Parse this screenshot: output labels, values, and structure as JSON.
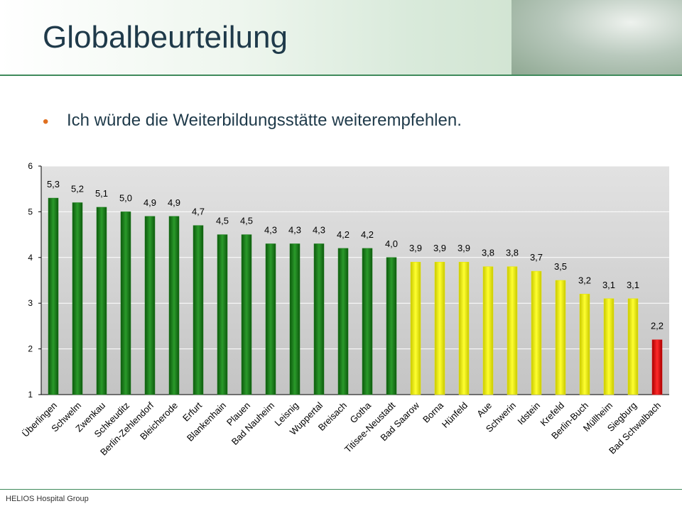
{
  "slide": {
    "title": "Globalbeurteilung",
    "bullet": "Ich würde die Weiterbildungsstätte weiterempfehlen.",
    "footer": "HELIOS Hospital Group"
  },
  "colors": {
    "green": "#1a7a1a",
    "yellow": "#e6e600",
    "red": "#dd1111",
    "bullet": "#e07020",
    "title": "#1f3a4a"
  },
  "chart_data": {
    "type": "bar",
    "title": "",
    "xlabel": "",
    "ylabel": "",
    "ylim": [
      1,
      6
    ],
    "yticks": [
      "1",
      "2",
      "3",
      "4",
      "5",
      "6"
    ],
    "grid": true,
    "categories": [
      "Überlingen",
      "Schwelm",
      "Zwenkau",
      "Schkeuditz",
      "Berlin-Zehlendorf",
      "Bleicherode",
      "Erfurt",
      "Blankenhain",
      "Plauen",
      "Bad Nauheim",
      "Leisnig",
      "Wuppertal",
      "Breisach",
      "Gotha",
      "Titisee-Neustadt",
      "Bad Saarow",
      "Borna",
      "Hünfeld",
      "Aue",
      "Schwerin",
      "Idstein",
      "Krefeld",
      "Berlin-Buch",
      "Müllheim",
      "Siegburg",
      "Bad Schwalbach"
    ],
    "values": [
      5.3,
      5.2,
      5.1,
      5.0,
      4.9,
      4.9,
      4.7,
      4.5,
      4.5,
      4.3,
      4.3,
      4.3,
      4.2,
      4.2,
      4.0,
      3.9,
      3.9,
      3.9,
      3.8,
      3.8,
      3.7,
      3.5,
      3.2,
      3.1,
      3.1,
      2.2
    ],
    "labels": [
      "5,3",
      "5,2",
      "5,1",
      "5,0",
      "4,9",
      "4,9",
      "4,7",
      "4,5",
      "4,5",
      "4,3",
      "4,3",
      "4,3",
      "4,2",
      "4,2",
      "4,0",
      "3,9",
      "3,9",
      "3,9",
      "3,8",
      "3,8",
      "3,7",
      "3,5",
      "3,2",
      "3,1",
      "3,1",
      "2,2"
    ],
    "bar_colors": [
      "green",
      "green",
      "green",
      "green",
      "green",
      "green",
      "green",
      "green",
      "green",
      "green",
      "green",
      "green",
      "green",
      "green",
      "green",
      "yellow",
      "yellow",
      "yellow",
      "yellow",
      "yellow",
      "yellow",
      "yellow",
      "yellow",
      "yellow",
      "yellow",
      "red"
    ]
  }
}
